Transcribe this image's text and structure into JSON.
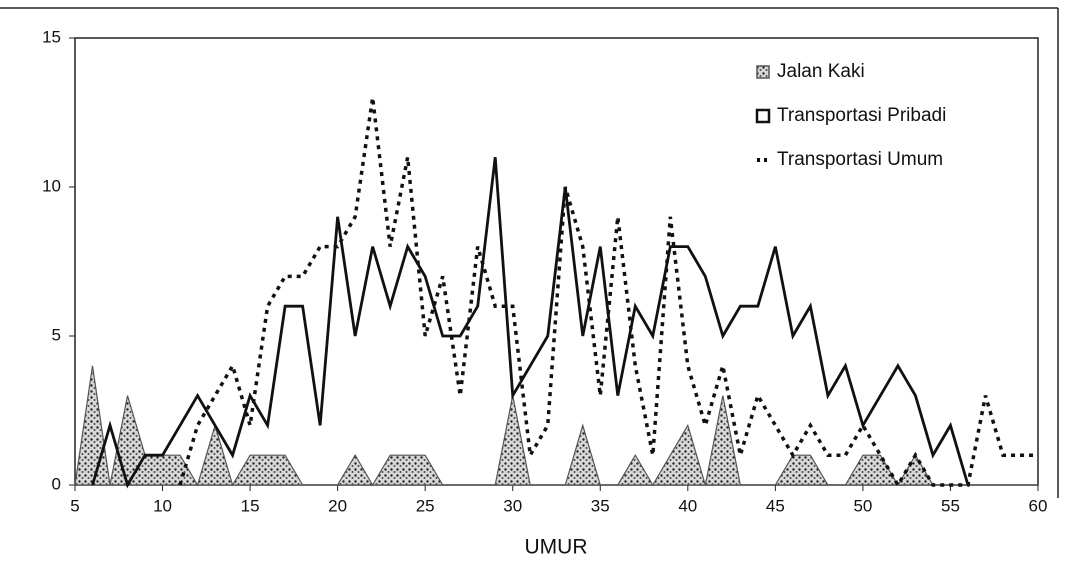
{
  "chart_data": {
    "type": "line",
    "x_label": "UMUR",
    "x": [
      5,
      6,
      7,
      8,
      9,
      10,
      11,
      12,
      13,
      14,
      15,
      16,
      17,
      18,
      19,
      20,
      21,
      22,
      23,
      24,
      25,
      26,
      27,
      28,
      29,
      30,
      31,
      32,
      33,
      34,
      35,
      36,
      37,
      38,
      39,
      40,
      41,
      42,
      43,
      44,
      45,
      46,
      47,
      48,
      49,
      50,
      51,
      52,
      53,
      54,
      55,
      56,
      57,
      58,
      59,
      60
    ],
    "xlim": [
      5,
      60
    ],
    "xticks": [
      5,
      10,
      15,
      20,
      25,
      30,
      35,
      40,
      45,
      50,
      55,
      60
    ],
    "ylim": [
      0,
      15
    ],
    "yticks": [
      0,
      5,
      10,
      15
    ],
    "series": [
      {
        "name": "Jalan Kaki",
        "color": "#555555",
        "kind": "area",
        "values": [
          0,
          4,
          0,
          3,
          1,
          1,
          1,
          0,
          2,
          0,
          1,
          1,
          1,
          0,
          0,
          0,
          1,
          0,
          1,
          1,
          1,
          0,
          0,
          0,
          0,
          3,
          0,
          0,
          0,
          2,
          0,
          0,
          1,
          0,
          1,
          2,
          0,
          3,
          0,
          0,
          0,
          1,
          1,
          0,
          0,
          1,
          1,
          0,
          1,
          0,
          0,
          0,
          0,
          0,
          0,
          0
        ]
      },
      {
        "name": "Transportasi Pribadi",
        "color": "#111111",
        "kind": "solid",
        "values": [
          null,
          0,
          2,
          0,
          1,
          1,
          2,
          3,
          2,
          1,
          3,
          2,
          6,
          6,
          2,
          9,
          5,
          8,
          6,
          8,
          7,
          5,
          5,
          6,
          11,
          3,
          4,
          5,
          10,
          5,
          8,
          3,
          6,
          5,
          8,
          8,
          7,
          5,
          6,
          6,
          8,
          5,
          6,
          3,
          4,
          2,
          3,
          4,
          3,
          1,
          2,
          0,
          null,
          null,
          null,
          null
        ]
      },
      {
        "name": "Transportasi Umum",
        "color": "#111111",
        "kind": "dotted",
        "values": [
          null,
          null,
          null,
          null,
          null,
          null,
          0,
          2,
          3,
          4,
          2,
          6,
          7,
          7,
          8,
          8,
          9,
          13,
          8,
          11,
          5,
          7,
          3,
          8,
          6,
          6,
          1,
          2,
          10,
          8,
          3,
          9,
          4,
          1,
          9,
          4,
          2,
          4,
          1,
          3,
          2,
          1,
          2,
          1,
          1,
          2,
          1,
          0,
          1,
          0,
          0,
          0,
          3,
          1,
          1,
          1
        ]
      }
    ],
    "legend": "top-right"
  }
}
